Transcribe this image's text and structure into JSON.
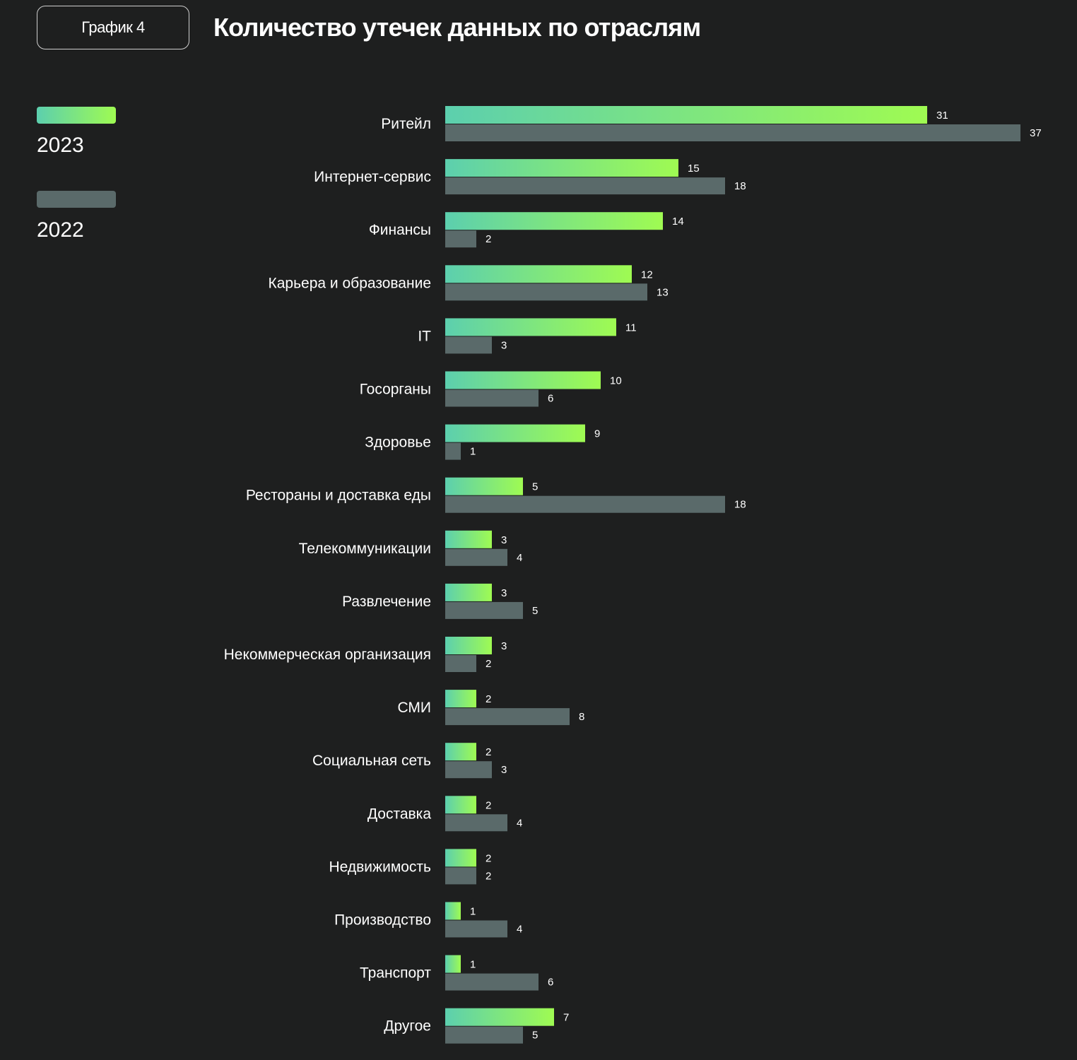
{
  "badge": "График 4",
  "title": "Количество утечек данных по отраслям",
  "colors": {
    "background": "#1e1f1f",
    "y2023_start": "#5ccfae",
    "y2023_end": "#9ffb52",
    "y2022": "#5a6a6a"
  },
  "chart_data": {
    "type": "bar",
    "orientation": "horizontal",
    "title": "Количество утечек данных по отраслям",
    "legend_placement": "left",
    "grid": false,
    "categories": [
      "Ритейл",
      "Интернет-сервис",
      "Финансы",
      "Карьера и образование",
      "IT",
      "Госорганы",
      "Здоровье",
      "Рестораны и доставка еды",
      "Телекоммуникации",
      "Развлечение",
      "Некоммерческая организация",
      "СМИ",
      "Социальная сеть",
      "Доставка",
      "Недвижимость",
      "Производство",
      "Транспорт",
      "Другое"
    ],
    "series": [
      {
        "name": "2023",
        "values": [
          31,
          15,
          14,
          12,
          11,
          10,
          9,
          5,
          3,
          3,
          3,
          2,
          2,
          2,
          2,
          1,
          1,
          7
        ]
      },
      {
        "name": "2022",
        "values": [
          37,
          18,
          2,
          13,
          3,
          6,
          1,
          18,
          4,
          5,
          2,
          8,
          3,
          4,
          2,
          4,
          6,
          5
        ]
      }
    ]
  }
}
